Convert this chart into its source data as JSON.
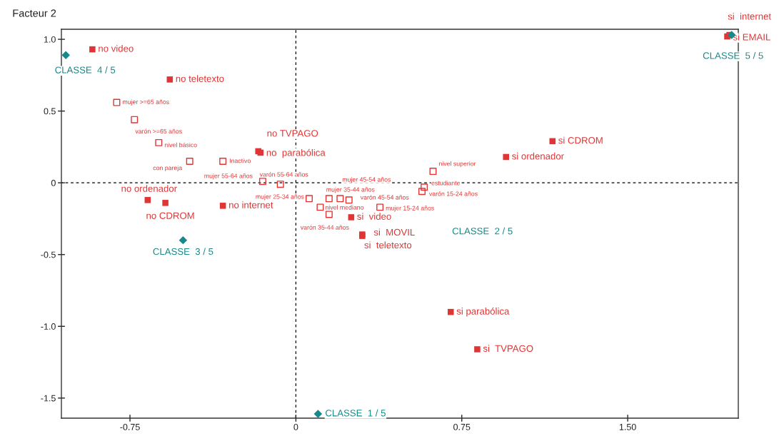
{
  "chart_data": {
    "type": "scatter",
    "ylabel": "Facteur 2",
    "xlim": [
      -1.06,
      2.0
    ],
    "ylim": [
      -1.64,
      1.07
    ],
    "xticks": [
      {
        "value": -0.75,
        "label": "-0.75"
      },
      0,
      0.75,
      {
        "value": 1.5,
        "label": "1.50"
      }
    ],
    "yticks": [
      {
        "value": 1.0,
        "label": "1.0"
      },
      {
        "value": 0.5,
        "label": "0.5"
      },
      0,
      {
        "value": -0.5,
        "label": "-0.5"
      },
      {
        "value": -1.0,
        "label": "-1.0"
      },
      {
        "value": -1.5,
        "label": "-1.5"
      }
    ],
    "ref_lines": [
      {
        "axis": "x",
        "value": 0,
        "color": "#000000",
        "line_style": "dashed"
      },
      {
        "axis": "y",
        "value": 0,
        "color": "#000000",
        "line_style": "dashed"
      }
    ],
    "series": [
      {
        "color": "#e03535",
        "marker": "square",
        "x": [
          -0.92,
          -0.57,
          -0.17,
          -0.16,
          -0.67,
          -0.59,
          -0.33,
          0.25,
          0.3,
          0.3,
          0.7,
          0.82,
          1.16,
          0.95,
          1.96,
          1.95
        ],
        "values": [
          0.93,
          0.72,
          0.22,
          0.21,
          -0.12,
          -0.14,
          -0.16,
          -0.24,
          -0.36,
          -0.37,
          -0.9,
          -1.16,
          0.29,
          0.18,
          1.03,
          1.02
        ],
        "value_labels": [
          "no video",
          "no teletexto",
          "no TVPAGO",
          "no  parabólica",
          "no ordenador",
          "no CDROM",
          "no internet",
          "si  video",
          "si  MOVIL",
          "si  teletexto",
          "si parabólica",
          "si  TVPAGO",
          "si CDROM",
          "si ordenador",
          "si  internet",
          "si EMAIL"
        ]
      },
      {
        "color": "#e03535",
        "marker": "square",
        "x": [
          -0.81,
          -0.73,
          -0.62,
          -0.48,
          -0.33,
          -0.15,
          -0.07,
          0.2,
          0.15,
          0.24,
          0.11,
          0.38,
          0.06,
          0.15,
          0.62,
          0.58,
          0.57
        ],
        "values": [
          0.56,
          0.44,
          0.28,
          0.15,
          0.15,
          0.01,
          -0.01,
          -0.11,
          -0.11,
          -0.12,
          -0.17,
          -0.17,
          -0.11,
          -0.22,
          0.08,
          -0.03,
          -0.06
        ],
        "value_labels": [
          "mujer >=65 años",
          "varón >=65 años",
          "nivel básico",
          "con pareja",
          "Inactivo",
          "mujer 55-64 años",
          "varón 55-64 años",
          "mujer 45-54 años",
          "mujer 35-44 años",
          "varón 45-54 años",
          "nivel mediano",
          "mujer 15-24 años",
          "mujer 25-34 años",
          "varón 35-44 años",
          "nivel superior",
          "estudiante",
          "varón 15-24 años"
        ]
      },
      {
        "color": "#17898a",
        "marker": "diamond",
        "x": [
          -1.04,
          -0.51,
          0.1,
          1.97
        ],
        "values": [
          0.89,
          -0.4,
          -1.61,
          1.03
        ],
        "value_labels": [
          "CLASSE  4 / 5",
          "CLASSE  3 / 5",
          "CLASSE  1 / 5",
          "CLASSE  5 / 5"
        ]
      }
    ],
    "annotations": [
      "CLASSE  2 / 5"
    ]
  }
}
